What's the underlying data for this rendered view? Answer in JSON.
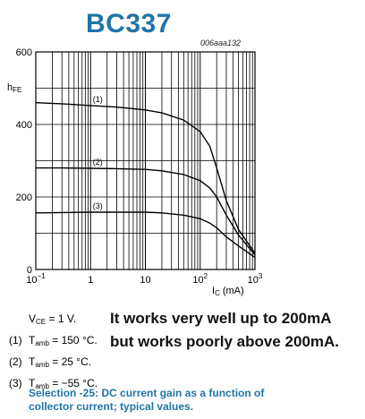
{
  "header": {
    "title": "BC337",
    "chart_code": "006aaa132"
  },
  "chart_data": {
    "type": "line",
    "title": "",
    "ylabel": "h",
    "ylabel_sub": "FE",
    "xlabel": "I",
    "xlabel_sub": "C",
    "xlabel_unit": "(mA)",
    "x_scale": "log",
    "xlim": [
      0.1,
      1000
    ],
    "ylim": [
      0,
      600
    ],
    "x_ticks": [
      {
        "base": "10",
        "exp": "−1"
      },
      {
        "base": "1",
        "exp": ""
      },
      {
        "base": "10",
        "exp": ""
      },
      {
        "base": "10",
        "exp": "2"
      },
      {
        "base": "10",
        "exp": "3"
      }
    ],
    "y_ticks": [
      "0",
      "200",
      "400",
      "600"
    ],
    "grid": true,
    "series": [
      {
        "name": "(1)",
        "x": [
          0.1,
          0.3,
          1,
          3,
          10,
          20,
          50,
          100,
          150,
          200,
          300,
          500,
          1000
        ],
        "y": [
          460,
          457,
          452,
          448,
          440,
          432,
          412,
          380,
          340,
          280,
          190,
          110,
          45
        ]
      },
      {
        "name": "(2)",
        "x": [
          0.1,
          0.3,
          1,
          3,
          10,
          20,
          50,
          100,
          150,
          200,
          300,
          500,
          1000
        ],
        "y": [
          280,
          280,
          279,
          278,
          276,
          272,
          262,
          245,
          225,
          200,
          150,
          95,
          40
        ]
      },
      {
        "name": "(3)",
        "x": [
          0.1,
          0.3,
          1,
          3,
          10,
          20,
          50,
          100,
          150,
          200,
          300,
          500,
          1000
        ],
        "y": [
          156,
          157,
          158,
          158,
          158,
          156,
          150,
          140,
          128,
          115,
          90,
          65,
          33
        ]
      }
    ]
  },
  "conditions": {
    "vce": {
      "pre": "V",
      "sub": "CE",
      "post": " = 1 V."
    },
    "items": [
      {
        "num": "(1)",
        "pre": "T",
        "sub": "amb",
        "post": " = 150 °C."
      },
      {
        "num": "(2)",
        "pre": "T",
        "sub": "amb",
        "post": " = 25 °C."
      },
      {
        "num": "(3)",
        "pre": "T",
        "sub": "amb",
        "post": " = −55 °C."
      }
    ]
  },
  "annotation": {
    "line1": "It works very well up to 200mA",
    "line2": "but works poorly above 200mA."
  },
  "caption": {
    "line1": "Selection -25: DC current gain as a function of",
    "line2": "collector current; typical values."
  }
}
